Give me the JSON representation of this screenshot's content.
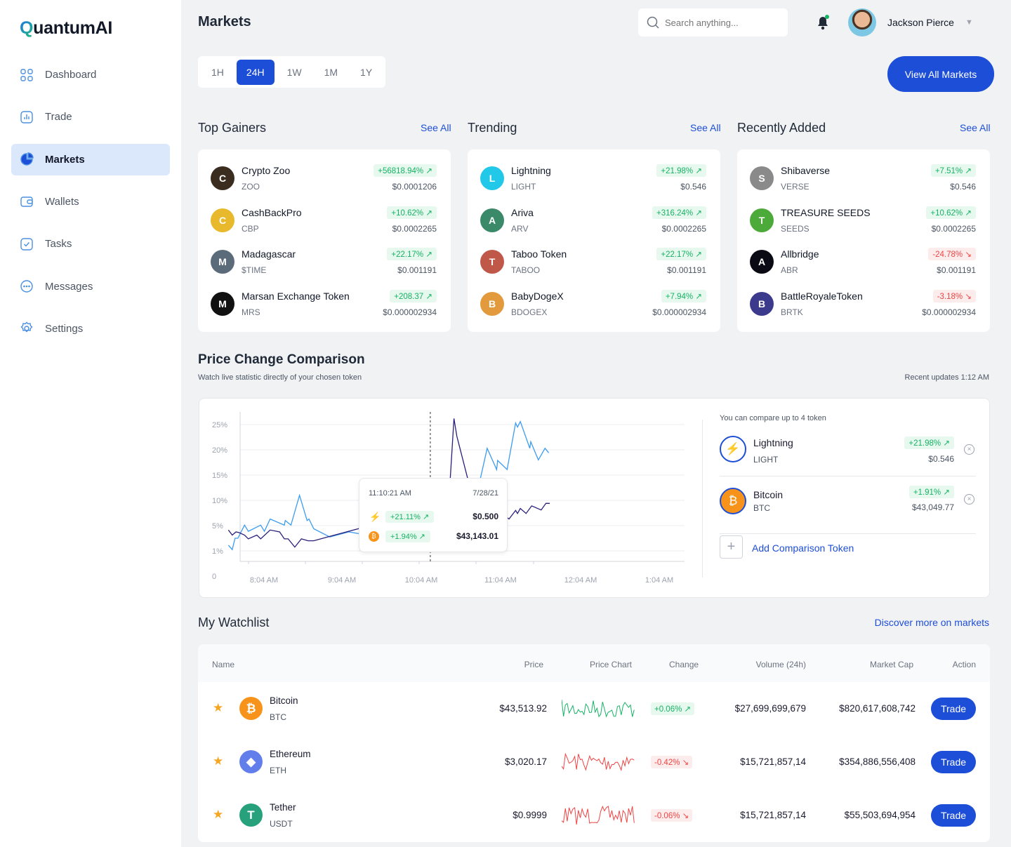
{
  "brand": {
    "name_q": "Q",
    "name_rest": "uantumAI"
  },
  "sidebar": {
    "items": [
      {
        "label": "Dashboard",
        "icon": "grid-icon",
        "active": false
      },
      {
        "label": "Trade",
        "icon": "chart-icon",
        "active": false
      },
      {
        "label": "Markets",
        "icon": "pie-icon",
        "active": true
      },
      {
        "label": "Wallets",
        "icon": "wallet-icon",
        "active": false
      },
      {
        "label": "Tasks",
        "icon": "checkbox-icon",
        "active": false
      },
      {
        "label": "Messages",
        "icon": "chat-icon",
        "active": false
      },
      {
        "label": "Settings",
        "icon": "gear-icon",
        "active": false
      }
    ]
  },
  "header": {
    "title": "Markets",
    "search_placeholder": "Search anything...",
    "user_name": "Jackson Pierce"
  },
  "timeframes": {
    "options": [
      "1H",
      "24H",
      "1W",
      "1M",
      "1Y"
    ],
    "selected": "24H"
  },
  "view_all_label": "View All Markets",
  "colors": {
    "primary": "#1d4ed8",
    "up": "#16b364",
    "down": "#ef4444",
    "lightning": "#3b9cf0",
    "bitcoin": "#2a1f7a"
  },
  "lists": [
    {
      "title": "Top Gainers",
      "see_all": "See All",
      "items": [
        {
          "name": "Crypto Zoo",
          "symbol": "ZOO",
          "change": "+56818.94%",
          "dir": "up",
          "price": "$0.0001206",
          "icon_color": "#3a2c1e"
        },
        {
          "name": "CashBackPro",
          "symbol": "CBP",
          "change": "+10.62%",
          "dir": "up",
          "price": "$0.0002265",
          "icon_color": "#e8b92c"
        },
        {
          "name": "Madagascar",
          "symbol": "$TIME",
          "change": "+22.17%",
          "dir": "up",
          "price": "$0.001191",
          "icon_color": "#5b6b7a"
        },
        {
          "name": "Marsan Exchange Token",
          "symbol": "MRS",
          "change": "+208.37",
          "dir": "up",
          "price": "$0.000002934",
          "icon_color": "#111111"
        }
      ]
    },
    {
      "title": "Trending",
      "see_all": "See All",
      "items": [
        {
          "name": "Lightning",
          "symbol": "LIGHT",
          "change": "+21.98%",
          "dir": "up",
          "price": "$0.546",
          "icon_color": "#22c8e8"
        },
        {
          "name": "Ariva",
          "symbol": "ARV",
          "change": "+316.24%",
          "dir": "up",
          "price": "$0.0002265",
          "icon_color": "#3a8a6a"
        },
        {
          "name": "Taboo Token",
          "symbol": "TABOO",
          "change": "+22.17%",
          "dir": "up",
          "price": "$0.001191",
          "icon_color": "#c0584a"
        },
        {
          "name": "BabyDogeX",
          "symbol": "BDOGEX",
          "change": "+7.94%",
          "dir": "up",
          "price": "$0.000002934",
          "icon_color": "#e29a3c"
        }
      ]
    },
    {
      "title": "Recently Added",
      "see_all": "See All",
      "items": [
        {
          "name": "Shibaverse",
          "symbol": "VERSE",
          "change": "+7.51%",
          "dir": "up",
          "price": "$0.546",
          "icon_color": "#8a8a8a"
        },
        {
          "name": "TREASURE SEEDS",
          "symbol": "SEEDS",
          "change": "+10.62%",
          "dir": "up",
          "price": "$0.0002265",
          "icon_color": "#4caa3a"
        },
        {
          "name": "Allbridge",
          "symbol": "ABR",
          "change": "-24.78%",
          "dir": "down",
          "price": "$0.001191",
          "icon_color": "#0a0a14"
        },
        {
          "name": "BattleRoyaleToken",
          "symbol": "BRTK",
          "change": "-3.18%",
          "dir": "down",
          "price": "$0.000002934",
          "icon_color": "#3b3a8c"
        }
      ]
    }
  ],
  "comparison": {
    "title": "Price Change Comparison",
    "subtitle": "Watch live statistic directly of your chosen token",
    "updated": "Recent updates 1:12 AM",
    "compare_note": "You can compare up to 4 token",
    "tokens": [
      {
        "name": "Lightning",
        "symbol": "LIGHT",
        "change": "+21.98%",
        "price": "$0.546"
      },
      {
        "name": "Bitcoin",
        "symbol": "BTC",
        "change": "+1.91%",
        "price": "$43,049.77"
      }
    ],
    "add_label": "Add Comparison Token",
    "tooltip": {
      "time": "11:10:21 AM",
      "date": "7/28/21",
      "rows": [
        {
          "change": "+21.11%",
          "price": "$0.500"
        },
        {
          "change": "+1.94%",
          "price": "$43,143.01"
        }
      ]
    }
  },
  "chart_data": {
    "type": "line",
    "xlabel": "",
    "ylabel": "",
    "x_ticks": [
      "8:04 AM",
      "9:04 AM",
      "10:04 AM",
      "11:04 AM",
      "12:04 AM",
      "1:04 AM"
    ],
    "y_ticks": [
      "0",
      "1%",
      "5%",
      "10%",
      "15%",
      "20%",
      "25%"
    ],
    "grid": true,
    "legend": "none",
    "hover_time": "11:16",
    "series": [
      {
        "token": "Lightning",
        "color": "#3b9cf0",
        "points": [
          [
            "7:43",
            1.9
          ],
          [
            "7:47",
            1.2
          ],
          [
            "7:50",
            3.0
          ],
          [
            "7:53",
            3.0
          ],
          [
            "8:00",
            5.1
          ],
          [
            "8:04",
            4.1
          ],
          [
            "8:17",
            5.1
          ],
          [
            "8:21",
            4.1
          ],
          [
            "8:27",
            6.3
          ],
          [
            "8:42",
            5.1
          ],
          [
            "8:43",
            6.0
          ],
          [
            "8:49",
            5.1
          ],
          [
            "8:58",
            11.0
          ],
          [
            "9:06",
            6.0
          ],
          [
            "9:08",
            6.3
          ],
          [
            "9:13",
            4.5
          ],
          [
            "9:30",
            3.2
          ],
          [
            "9:50",
            4.0
          ],
          [
            "10:10",
            3.5
          ],
          [
            "10:30",
            5.0
          ],
          [
            "10:50",
            7.5
          ],
          [
            "11:08",
            8.5
          ],
          [
            "11:16",
            5.8
          ],
          [
            "11:23",
            4.1
          ],
          [
            "11:30",
            5.1
          ],
          [
            "11:35",
            4.1
          ],
          [
            "11:46",
            6.0
          ],
          [
            "11:51",
            4.1
          ],
          [
            "12:03",
            13.7
          ],
          [
            "12:07",
            12.8
          ],
          [
            "12:16",
            20.3
          ],
          [
            "12:26",
            16.1
          ],
          [
            "12:27",
            17.9
          ],
          [
            "12:37",
            16.1
          ],
          [
            "12:46",
            25.3
          ],
          [
            "12:48",
            24.5
          ],
          [
            "12:51",
            25.6
          ],
          [
            "1:01",
            20.3
          ],
          [
            "1:02",
            21.6
          ],
          [
            "1:10",
            18.0
          ],
          [
            "1:17",
            20.3
          ],
          [
            "1:21",
            19.4
          ]
        ]
      },
      {
        "token": "Bitcoin",
        "color": "#2a1f7a",
        "points": [
          [
            "7:43",
            4.3
          ],
          [
            "7:47",
            3.5
          ],
          [
            "7:51",
            4.0
          ],
          [
            "7:54",
            3.9
          ],
          [
            "8:00",
            3.5
          ],
          [
            "8:04",
            2.9
          ],
          [
            "8:13",
            3.5
          ],
          [
            "8:17",
            2.9
          ],
          [
            "8:27",
            4.3
          ],
          [
            "8:37",
            4.0
          ],
          [
            "8:42",
            2.9
          ],
          [
            "8:46",
            2.9
          ],
          [
            "8:53",
            1.6
          ],
          [
            "9:00",
            2.9
          ],
          [
            "9:07",
            2.6
          ],
          [
            "9:13",
            2.6
          ],
          [
            "9:35",
            3.5
          ],
          [
            "10:00",
            4.5
          ],
          [
            "10:30",
            6.5
          ],
          [
            "10:50",
            8.0
          ],
          [
            "11:08",
            9.0
          ],
          [
            "11:16",
            8.4
          ],
          [
            "11:23",
            8.1
          ],
          [
            "11:30",
            9.2
          ],
          [
            "11:35",
            8.0
          ],
          [
            "11:41",
            26.2
          ],
          [
            "11:44",
            22.7
          ],
          [
            "11:56",
            13.9
          ],
          [
            "12:12",
            10.3
          ],
          [
            "12:20",
            9.4
          ],
          [
            "12:26",
            8.1
          ],
          [
            "12:39",
            6.3
          ],
          [
            "12:46",
            8.0
          ],
          [
            "12:48",
            7.4
          ],
          [
            "12:51",
            8.4
          ],
          [
            "12:57",
            7.4
          ],
          [
            "1:03",
            8.9
          ],
          [
            "1:13",
            8.1
          ],
          [
            "1:18",
            9.4
          ],
          [
            "1:22",
            9.4
          ]
        ]
      }
    ]
  },
  "watchlist": {
    "title": "My Watchlist",
    "discover": "Discover more on markets",
    "columns": [
      "Name",
      "Price",
      "Price Chart",
      "Change",
      "Volume (24h)",
      "Market Cap",
      "Action"
    ],
    "rows": [
      {
        "name": "Bitcoin",
        "symbol": "BTC",
        "price": "$43,513.92",
        "change": "+0.06%",
        "dir": "up",
        "volume": "$27,699,699,679",
        "cap": "$820,617,608,742",
        "action": "Trade",
        "icon_color": "#f7931a",
        "glyph": "₿"
      },
      {
        "name": "Ethereum",
        "symbol": "ETH",
        "price": "$3,020.17",
        "change": "-0.42%",
        "dir": "down",
        "volume": "$15,721,857,14",
        "cap": "$354,886,556,408",
        "action": "Trade",
        "icon_color": "#627eea",
        "glyph": "◆"
      },
      {
        "name": "Tether",
        "symbol": "USDT",
        "price": "$0.9999",
        "change": "-0.06%",
        "dir": "down",
        "volume": "$15,721,857,14",
        "cap": "$55,503,694,954",
        "action": "Trade",
        "icon_color": "#26a17b",
        "glyph": "T"
      }
    ]
  }
}
